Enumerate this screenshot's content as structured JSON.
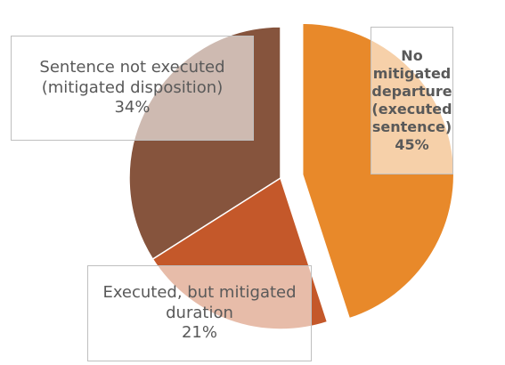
{
  "chart_data": {
    "type": "pie",
    "categories": [
      "No mitigated departure (executed sentence)",
      "Executed, but mitigated duration",
      "Sentence not executed (mitigated disposition)"
    ],
    "values": [
      45,
      21,
      34
    ],
    "value_labels": [
      "45%",
      "21%",
      "34%"
    ],
    "colors": [
      "#e8892a",
      "#c4582a",
      "#86543d"
    ],
    "explode": [
      true,
      false,
      false
    ]
  }
}
